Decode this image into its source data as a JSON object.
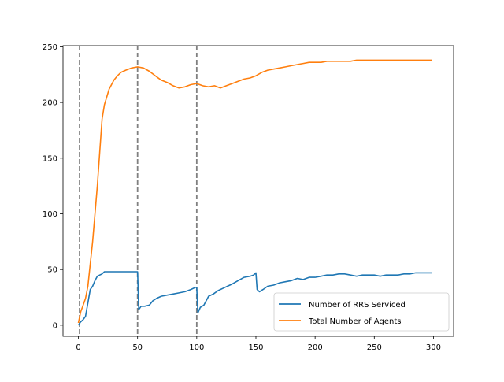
{
  "chart_data": {
    "type": "line",
    "title": "",
    "xlabel": "",
    "ylabel": "",
    "xlim": [
      -13,
      317
    ],
    "ylim": [
      -10,
      251
    ],
    "x_ticks": [
      0,
      50,
      100,
      150,
      200,
      250,
      300
    ],
    "y_ticks": [
      0,
      50,
      100,
      150,
      200,
      250
    ],
    "vlines": [
      1,
      50,
      100
    ],
    "vline_color": "#808080",
    "legend": {
      "position": "lower-right"
    },
    "series": [
      {
        "name": "Number of RRS Serviced",
        "color": "#1f77b4",
        "points": [
          [
            0,
            0
          ],
          [
            2,
            3
          ],
          [
            4,
            5
          ],
          [
            6,
            8
          ],
          [
            8,
            20
          ],
          [
            10,
            32
          ],
          [
            12,
            35
          ],
          [
            14,
            40
          ],
          [
            16,
            44
          ],
          [
            18,
            45
          ],
          [
            20,
            46
          ],
          [
            22,
            48
          ],
          [
            25,
            48
          ],
          [
            30,
            48
          ],
          [
            35,
            48
          ],
          [
            40,
            48
          ],
          [
            45,
            48
          ],
          [
            49,
            48
          ],
          [
            50,
            48
          ],
          [
            51,
            14
          ],
          [
            53,
            17
          ],
          [
            56,
            17
          ],
          [
            60,
            18
          ],
          [
            63,
            22
          ],
          [
            66,
            24
          ],
          [
            70,
            26
          ],
          [
            75,
            27
          ],
          [
            80,
            28
          ],
          [
            85,
            29
          ],
          [
            90,
            30
          ],
          [
            95,
            32
          ],
          [
            99,
            34
          ],
          [
            100,
            34
          ],
          [
            101,
            11
          ],
          [
            103,
            16
          ],
          [
            106,
            18
          ],
          [
            108,
            22
          ],
          [
            110,
            26
          ],
          [
            114,
            28
          ],
          [
            118,
            31
          ],
          [
            122,
            33
          ],
          [
            126,
            35
          ],
          [
            130,
            37
          ],
          [
            135,
            40
          ],
          [
            140,
            43
          ],
          [
            145,
            44
          ],
          [
            148,
            45
          ],
          [
            150,
            47
          ],
          [
            151,
            32
          ],
          [
            153,
            30
          ],
          [
            156,
            32
          ],
          [
            160,
            35
          ],
          [
            165,
            36
          ],
          [
            170,
            38
          ],
          [
            175,
            39
          ],
          [
            180,
            40
          ],
          [
            185,
            42
          ],
          [
            190,
            41
          ],
          [
            195,
            43
          ],
          [
            200,
            43
          ],
          [
            205,
            44
          ],
          [
            210,
            45
          ],
          [
            215,
            45
          ],
          [
            220,
            46
          ],
          [
            225,
            46
          ],
          [
            230,
            45
          ],
          [
            235,
            44
          ],
          [
            240,
            45
          ],
          [
            245,
            45
          ],
          [
            250,
            45
          ],
          [
            255,
            44
          ],
          [
            260,
            45
          ],
          [
            265,
            45
          ],
          [
            270,
            45
          ],
          [
            275,
            46
          ],
          [
            280,
            46
          ],
          [
            285,
            47
          ],
          [
            290,
            47
          ],
          [
            295,
            47
          ],
          [
            299,
            47
          ]
        ]
      },
      {
        "name": "Total Number of Agents",
        "color": "#ff7f0e",
        "points": [
          [
            0,
            2
          ],
          [
            2,
            12
          ],
          [
            4,
            18
          ],
          [
            6,
            24
          ],
          [
            8,
            35
          ],
          [
            10,
            55
          ],
          [
            12,
            75
          ],
          [
            14,
            100
          ],
          [
            16,
            125
          ],
          [
            18,
            155
          ],
          [
            20,
            185
          ],
          [
            22,
            198
          ],
          [
            24,
            205
          ],
          [
            26,
            212
          ],
          [
            28,
            216
          ],
          [
            30,
            220
          ],
          [
            33,
            224
          ],
          [
            36,
            227
          ],
          [
            40,
            229
          ],
          [
            45,
            231
          ],
          [
            50,
            232
          ],
          [
            55,
            231
          ],
          [
            60,
            228
          ],
          [
            65,
            224
          ],
          [
            70,
            220
          ],
          [
            75,
            218
          ],
          [
            80,
            215
          ],
          [
            85,
            213
          ],
          [
            90,
            214
          ],
          [
            95,
            216
          ],
          [
            100,
            217
          ],
          [
            105,
            215
          ],
          [
            110,
            214
          ],
          [
            115,
            215
          ],
          [
            120,
            213
          ],
          [
            125,
            215
          ],
          [
            130,
            217
          ],
          [
            135,
            219
          ],
          [
            140,
            221
          ],
          [
            145,
            222
          ],
          [
            150,
            224
          ],
          [
            155,
            227
          ],
          [
            160,
            229
          ],
          [
            165,
            230
          ],
          [
            170,
            231
          ],
          [
            175,
            232
          ],
          [
            180,
            233
          ],
          [
            185,
            234
          ],
          [
            190,
            235
          ],
          [
            195,
            236
          ],
          [
            200,
            236
          ],
          [
            205,
            236
          ],
          [
            210,
            237
          ],
          [
            215,
            237
          ],
          [
            220,
            237
          ],
          [
            225,
            237
          ],
          [
            230,
            237
          ],
          [
            235,
            238
          ],
          [
            240,
            238
          ],
          [
            245,
            238
          ],
          [
            250,
            238
          ],
          [
            255,
            238
          ],
          [
            260,
            238
          ],
          [
            265,
            238
          ],
          [
            270,
            238
          ],
          [
            275,
            238
          ],
          [
            280,
            238
          ],
          [
            285,
            238
          ],
          [
            290,
            238
          ],
          [
            295,
            238
          ],
          [
            299,
            238
          ]
        ]
      }
    ]
  }
}
